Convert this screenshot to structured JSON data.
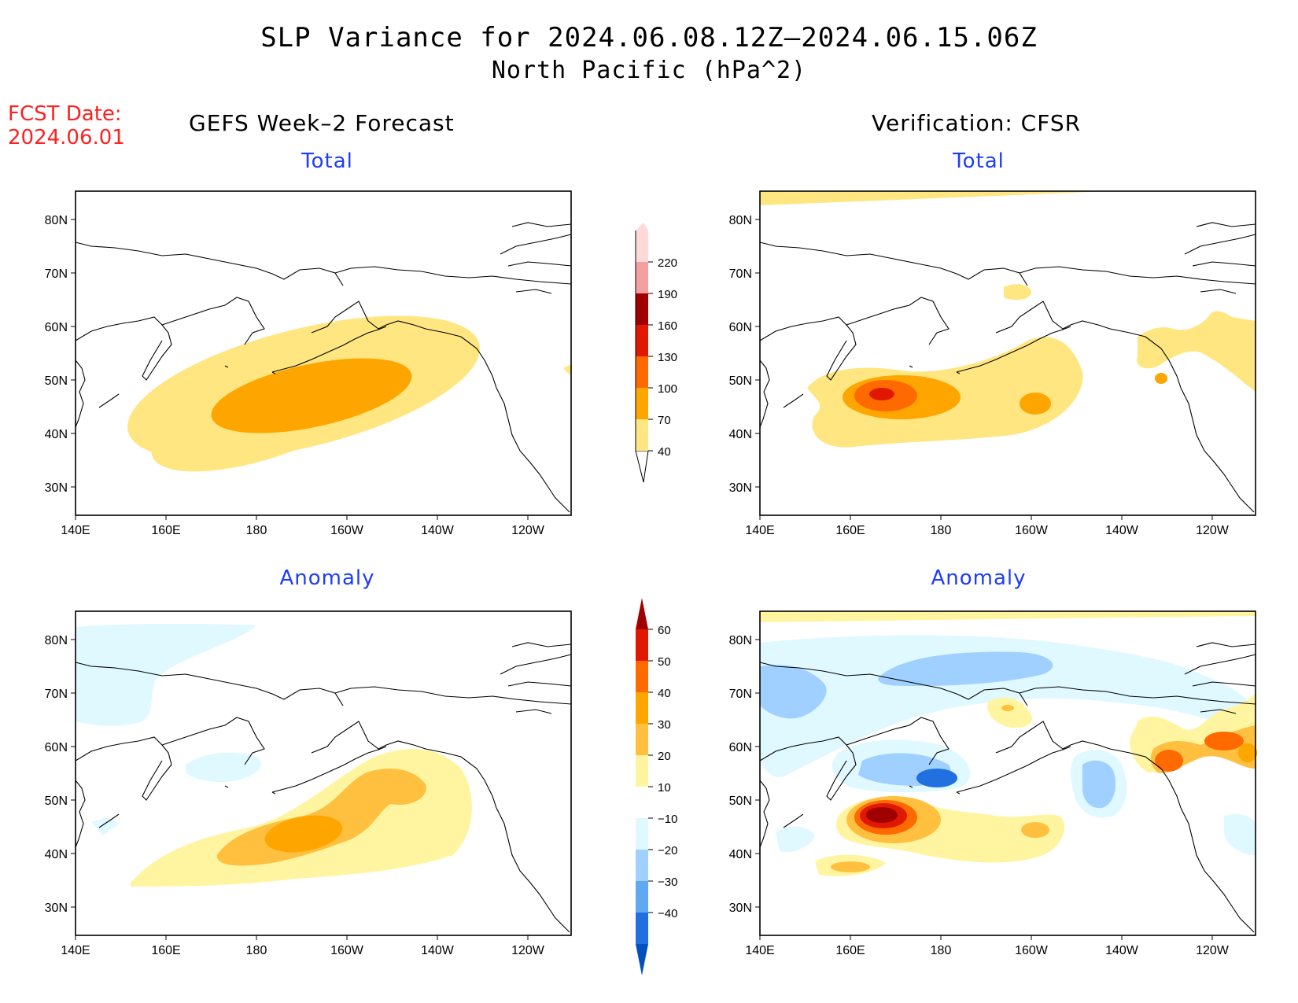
{
  "title_line1": "SLP Variance for 2024.06.08.12Z–2024.06.15.06Z",
  "title_line2": "North Pacific (hPa^2)",
  "fcst_label": "FCST Date:",
  "fcst_date": "2024.06.01",
  "left_column_title": "GEFS Week–2 Forecast",
  "right_column_title": "Verification: CFSR",
  "panels": {
    "total_label": "Total",
    "anomaly_label": "Anomaly"
  },
  "map_axes": {
    "lon_labels": [
      "140E",
      "160E",
      "180",
      "160W",
      "140W",
      "120W"
    ],
    "lat_labels": [
      "80N",
      "70N",
      "60N",
      "50N",
      "40N",
      "30N"
    ]
  },
  "colorbar_total": {
    "labels": [
      "40",
      "70",
      "100",
      "130",
      "160",
      "190",
      "220"
    ],
    "colors": [
      "#ffe680",
      "#ffa500",
      "#ff6a00",
      "#e01800",
      "#a00000",
      "#f4a0a0",
      "#ffd8d8"
    ]
  },
  "colorbar_anomaly": {
    "labels": [
      "60",
      "50",
      "40",
      "30",
      "20",
      "10",
      "−10",
      "−20",
      "−30",
      "−40"
    ],
    "colors": [
      "#a00000",
      "#e01800",
      "#ff6a00",
      "#ffa500",
      "#ffc040",
      "#fff5a0",
      "#ffffff",
      "#e0f8ff",
      "#a0d0ff",
      "#60a8f0",
      "#2070e0",
      "#0050c0"
    ]
  }
}
